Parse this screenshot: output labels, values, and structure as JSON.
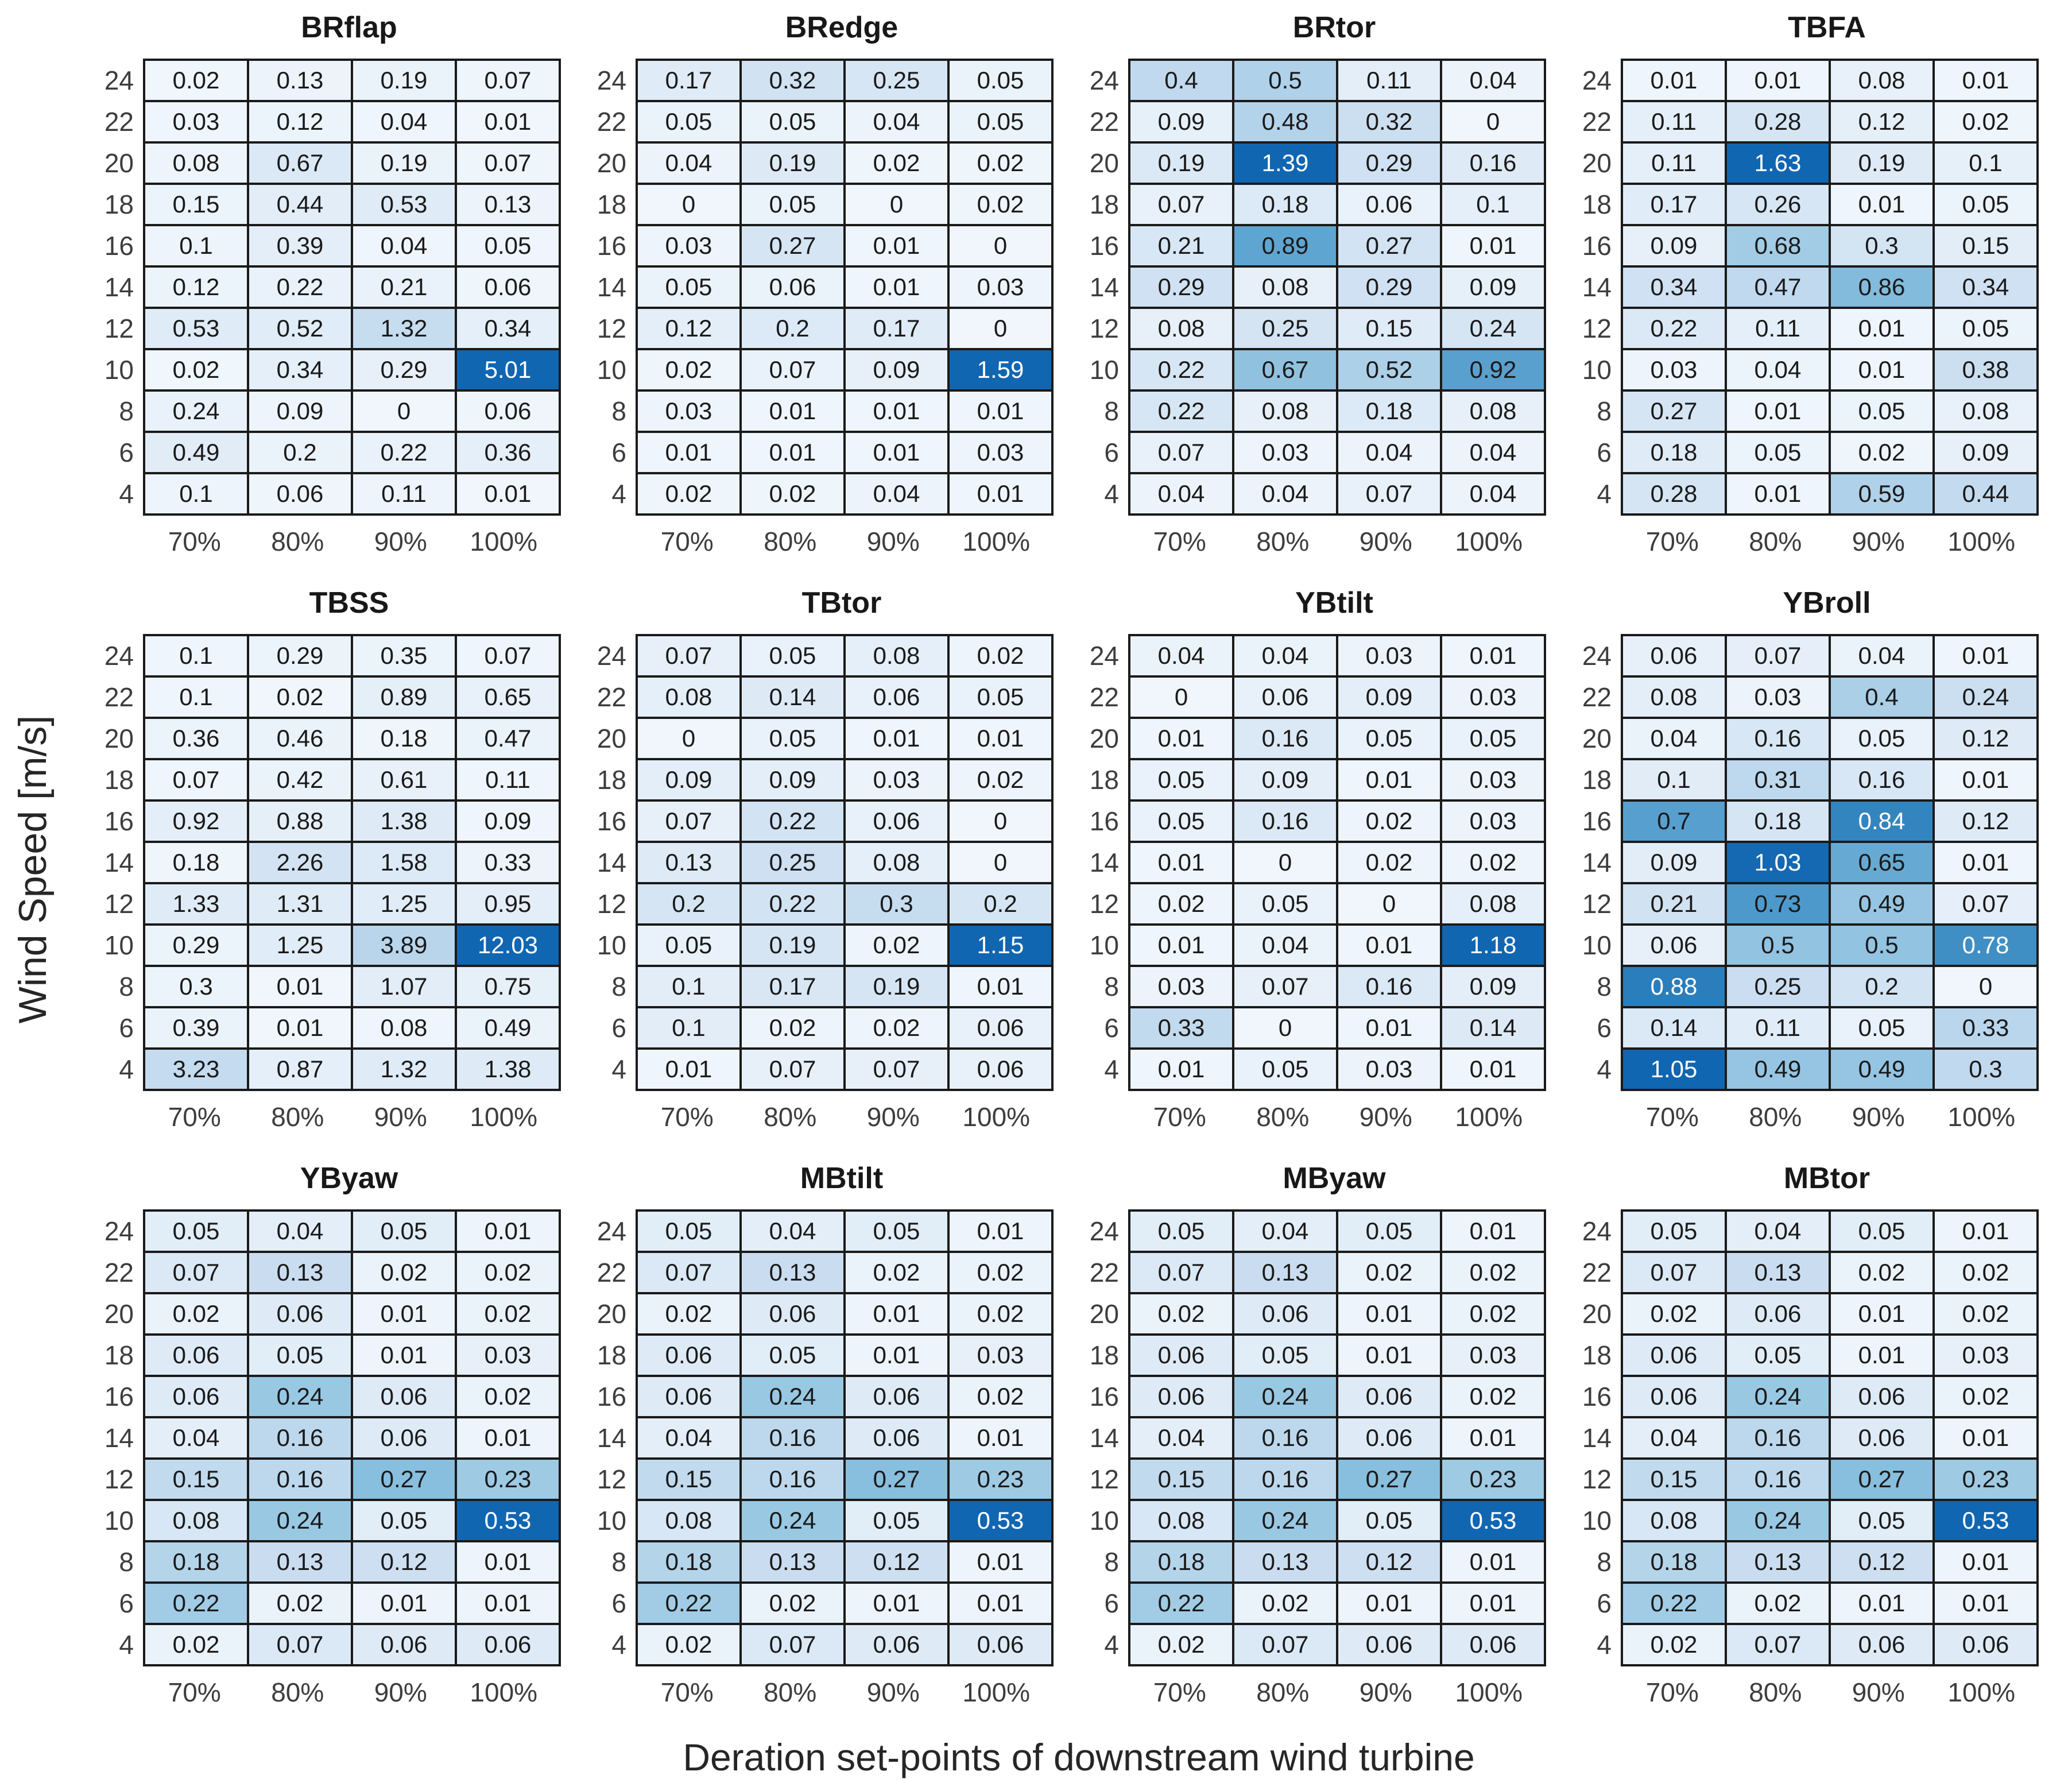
{
  "chart_data": {
    "type": "heatmap",
    "layout": "3 rows x 4 columns of sub-panels, one per load channel",
    "x": [
      "70%",
      "80%",
      "90%",
      "100%"
    ],
    "y": [
      24,
      22,
      20,
      18,
      16,
      14,
      12,
      10,
      8,
      6,
      4
    ],
    "xlabel": "Deration set-points of downstream wind turbine",
    "ylabel": "Wind Speed [m/s]",
    "legend": "none",
    "grid": "off",
    "color_normalization": "per-panel linear, value / panel max, Blues-like colormap",
    "panels": [
      {
        "title": "BRflap",
        "values": [
          [
            0.02,
            0.13,
            0.19,
            0.07
          ],
          [
            0.03,
            0.12,
            0.04,
            0.01
          ],
          [
            0.08,
            0.67,
            0.19,
            0.07
          ],
          [
            0.15,
            0.44,
            0.53,
            0.13
          ],
          [
            0.1,
            0.39,
            0.04,
            0.05
          ],
          [
            0.12,
            0.22,
            0.21,
            0.06
          ],
          [
            0.53,
            0.52,
            1.32,
            0.34
          ],
          [
            0.02,
            0.34,
            0.29,
            5.01
          ],
          [
            0.24,
            0.09,
            0,
            0.06
          ],
          [
            0.49,
            0.2,
            0.22,
            0.36
          ],
          [
            0.1,
            0.06,
            0.11,
            0.01
          ]
        ]
      },
      {
        "title": "BRedge",
        "values": [
          [
            0.17,
            0.32,
            0.25,
            0.05
          ],
          [
            0.05,
            0.05,
            0.04,
            0.05
          ],
          [
            0.04,
            0.19,
            0.02,
            0.02
          ],
          [
            0,
            0.05,
            0,
            0.02
          ],
          [
            0.03,
            0.27,
            0.01,
            0
          ],
          [
            0.05,
            0.06,
            0.01,
            0.03
          ],
          [
            0.12,
            0.2,
            0.17,
            0
          ],
          [
            0.02,
            0.07,
            0.09,
            1.59
          ],
          [
            0.03,
            0.01,
            0.01,
            0.01
          ],
          [
            0.01,
            0.01,
            0.01,
            0.03
          ],
          [
            0.02,
            0.02,
            0.04,
            0.01
          ]
        ]
      },
      {
        "title": "BRtor",
        "values": [
          [
            0.4,
            0.5,
            0.11,
            0.04
          ],
          [
            0.09,
            0.48,
            0.32,
            0
          ],
          [
            0.19,
            1.39,
            0.29,
            0.16
          ],
          [
            0.07,
            0.18,
            0.06,
            0.1
          ],
          [
            0.21,
            0.89,
            0.27,
            0.01
          ],
          [
            0.29,
            0.08,
            0.29,
            0.09
          ],
          [
            0.08,
            0.25,
            0.15,
            0.24
          ],
          [
            0.22,
            0.67,
            0.52,
            0.92
          ],
          [
            0.22,
            0.08,
            0.18,
            0.08
          ],
          [
            0.07,
            0.03,
            0.04,
            0.04
          ],
          [
            0.04,
            0.04,
            0.07,
            0.04
          ]
        ]
      },
      {
        "title": "TBFA",
        "values": [
          [
            0.01,
            0.01,
            0.08,
            0.01
          ],
          [
            0.11,
            0.28,
            0.12,
            0.02
          ],
          [
            0.11,
            1.63,
            0.19,
            0.1
          ],
          [
            0.17,
            0.26,
            0.01,
            0.05
          ],
          [
            0.09,
            0.68,
            0.3,
            0.15
          ],
          [
            0.34,
            0.47,
            0.86,
            0.34
          ],
          [
            0.22,
            0.11,
            0.01,
            0.05
          ],
          [
            0.03,
            0.04,
            0.01,
            0.38
          ],
          [
            0.27,
            0.01,
            0.05,
            0.08
          ],
          [
            0.18,
            0.05,
            0.02,
            0.09
          ],
          [
            0.28,
            0.01,
            0.59,
            0.44
          ]
        ]
      },
      {
        "title": "TBSS",
        "values": [
          [
            0.1,
            0.29,
            0.35,
            0.07
          ],
          [
            0.1,
            0.02,
            0.89,
            0.65
          ],
          [
            0.36,
            0.46,
            0.18,
            0.47
          ],
          [
            0.07,
            0.42,
            0.61,
            0.11
          ],
          [
            0.92,
            0.88,
            1.38,
            0.09
          ],
          [
            0.18,
            2.26,
            1.58,
            0.33
          ],
          [
            1.33,
            1.31,
            1.25,
            0.95
          ],
          [
            0.29,
            1.25,
            3.89,
            12.03
          ],
          [
            0.3,
            0.01,
            1.07,
            0.75
          ],
          [
            0.39,
            0.01,
            0.08,
            0.49
          ],
          [
            3.23,
            0.87,
            1.32,
            1.38
          ]
        ]
      },
      {
        "title": "TBtor",
        "values": [
          [
            0.07,
            0.05,
            0.08,
            0.02
          ],
          [
            0.08,
            0.14,
            0.06,
            0.05
          ],
          [
            0,
            0.05,
            0.01,
            0.01
          ],
          [
            0.09,
            0.09,
            0.03,
            0.02
          ],
          [
            0.07,
            0.22,
            0.06,
            0
          ],
          [
            0.13,
            0.25,
            0.08,
            0
          ],
          [
            0.2,
            0.22,
            0.3,
            0.2
          ],
          [
            0.05,
            0.19,
            0.02,
            1.15
          ],
          [
            0.1,
            0.17,
            0.19,
            0.01
          ],
          [
            0.1,
            0.02,
            0.02,
            0.06
          ],
          [
            0.01,
            0.07,
            0.07,
            0.06
          ]
        ]
      },
      {
        "title": "YBtilt",
        "values": [
          [
            0.04,
            0.04,
            0.03,
            0.01
          ],
          [
            0,
            0.06,
            0.09,
            0.03
          ],
          [
            0.01,
            0.16,
            0.05,
            0.05
          ],
          [
            0.05,
            0.09,
            0.01,
            0.03
          ],
          [
            0.05,
            0.16,
            0.02,
            0.03
          ],
          [
            0.01,
            0,
            0.02,
            0.02
          ],
          [
            0.02,
            0.05,
            0,
            0.08
          ],
          [
            0.01,
            0.04,
            0.01,
            1.18
          ],
          [
            0.03,
            0.07,
            0.16,
            0.09
          ],
          [
            0.33,
            0,
            0.01,
            0.14
          ],
          [
            0.01,
            0.05,
            0.03,
            0.01
          ]
        ]
      },
      {
        "title": "YBroll",
        "values": [
          [
            0.06,
            0.07,
            0.04,
            0.01
          ],
          [
            0.08,
            0.03,
            0.4,
            0.24
          ],
          [
            0.04,
            0.16,
            0.05,
            0.12
          ],
          [
            0.1,
            0.31,
            0.16,
            0.01
          ],
          [
            0.7,
            0.18,
            0.84,
            0.12
          ],
          [
            0.09,
            1.03,
            0.65,
            0.01
          ],
          [
            0.21,
            0.73,
            0.49,
            0.07
          ],
          [
            0.06,
            0.5,
            0.5,
            0.78
          ],
          [
            0.88,
            0.25,
            0.2,
            0
          ],
          [
            0.14,
            0.11,
            0.05,
            0.33
          ],
          [
            1.05,
            0.49,
            0.49,
            0.3
          ]
        ]
      },
      {
        "title": "YByaw",
        "values": [
          [
            0.05,
            0.04,
            0.05,
            0.01
          ],
          [
            0.07,
            0.13,
            0.02,
            0.02
          ],
          [
            0.02,
            0.06,
            0.01,
            0.02
          ],
          [
            0.06,
            0.05,
            0.01,
            0.03
          ],
          [
            0.06,
            0.24,
            0.06,
            0.02
          ],
          [
            0.04,
            0.16,
            0.06,
            0.01
          ],
          [
            0.15,
            0.16,
            0.27,
            0.23
          ],
          [
            0.08,
            0.24,
            0.05,
            0.53
          ],
          [
            0.18,
            0.13,
            0.12,
            0.01
          ],
          [
            0.22,
            0.02,
            0.01,
            0.01
          ],
          [
            0.02,
            0.07,
            0.06,
            0.06
          ]
        ]
      },
      {
        "title": "MBtilt",
        "values": [
          [
            0.05,
            0.04,
            0.05,
            0.01
          ],
          [
            0.07,
            0.13,
            0.02,
            0.02
          ],
          [
            0.02,
            0.06,
            0.01,
            0.02
          ],
          [
            0.06,
            0.05,
            0.01,
            0.03
          ],
          [
            0.06,
            0.24,
            0.06,
            0.02
          ],
          [
            0.04,
            0.16,
            0.06,
            0.01
          ],
          [
            0.15,
            0.16,
            0.27,
            0.23
          ],
          [
            0.08,
            0.24,
            0.05,
            0.53
          ],
          [
            0.18,
            0.13,
            0.12,
            0.01
          ],
          [
            0.22,
            0.02,
            0.01,
            0.01
          ],
          [
            0.02,
            0.07,
            0.06,
            0.06
          ]
        ]
      },
      {
        "title": "MByaw",
        "values": [
          [
            0.05,
            0.04,
            0.05,
            0.01
          ],
          [
            0.07,
            0.13,
            0.02,
            0.02
          ],
          [
            0.02,
            0.06,
            0.01,
            0.02
          ],
          [
            0.06,
            0.05,
            0.01,
            0.03
          ],
          [
            0.06,
            0.24,
            0.06,
            0.02
          ],
          [
            0.04,
            0.16,
            0.06,
            0.01
          ],
          [
            0.15,
            0.16,
            0.27,
            0.23
          ],
          [
            0.08,
            0.24,
            0.05,
            0.53
          ],
          [
            0.18,
            0.13,
            0.12,
            0.01
          ],
          [
            0.22,
            0.02,
            0.01,
            0.01
          ],
          [
            0.02,
            0.07,
            0.06,
            0.06
          ]
        ]
      },
      {
        "title": "MBtor",
        "values": [
          [
            0.05,
            0.04,
            0.05,
            0.01
          ],
          [
            0.07,
            0.13,
            0.02,
            0.02
          ],
          [
            0.02,
            0.06,
            0.01,
            0.02
          ],
          [
            0.06,
            0.05,
            0.01,
            0.03
          ],
          [
            0.06,
            0.24,
            0.06,
            0.02
          ],
          [
            0.04,
            0.16,
            0.06,
            0.01
          ],
          [
            0.15,
            0.16,
            0.27,
            0.23
          ],
          [
            0.08,
            0.24,
            0.05,
            0.53
          ],
          [
            0.18,
            0.13,
            0.12,
            0.01
          ],
          [
            0.22,
            0.02,
            0.01,
            0.01
          ],
          [
            0.02,
            0.07,
            0.06,
            0.06
          ]
        ]
      }
    ]
  },
  "colors": {
    "background": "#ffffff",
    "cell_border": "#1a1a1a",
    "text_dark": "#1a1a1a",
    "text_light": "#ffffff",
    "tick_color": "#3d3d3d",
    "title_color": "#181818",
    "max_cell_blue": "#1166b1",
    "min_cell_blue": "#f0f6fc",
    "scale_stops": [
      [
        0,
        "#f0f6fc"
      ],
      [
        0.25,
        "#c9ddf0"
      ],
      [
        0.45,
        "#9ac8e3"
      ],
      [
        0.6,
        "#6caed6"
      ],
      [
        0.75,
        "#3d8dc4"
      ],
      [
        0.9,
        "#1f74b6"
      ],
      [
        1,
        "#1166b1"
      ]
    ],
    "white_text_threshold": 0.7
  }
}
